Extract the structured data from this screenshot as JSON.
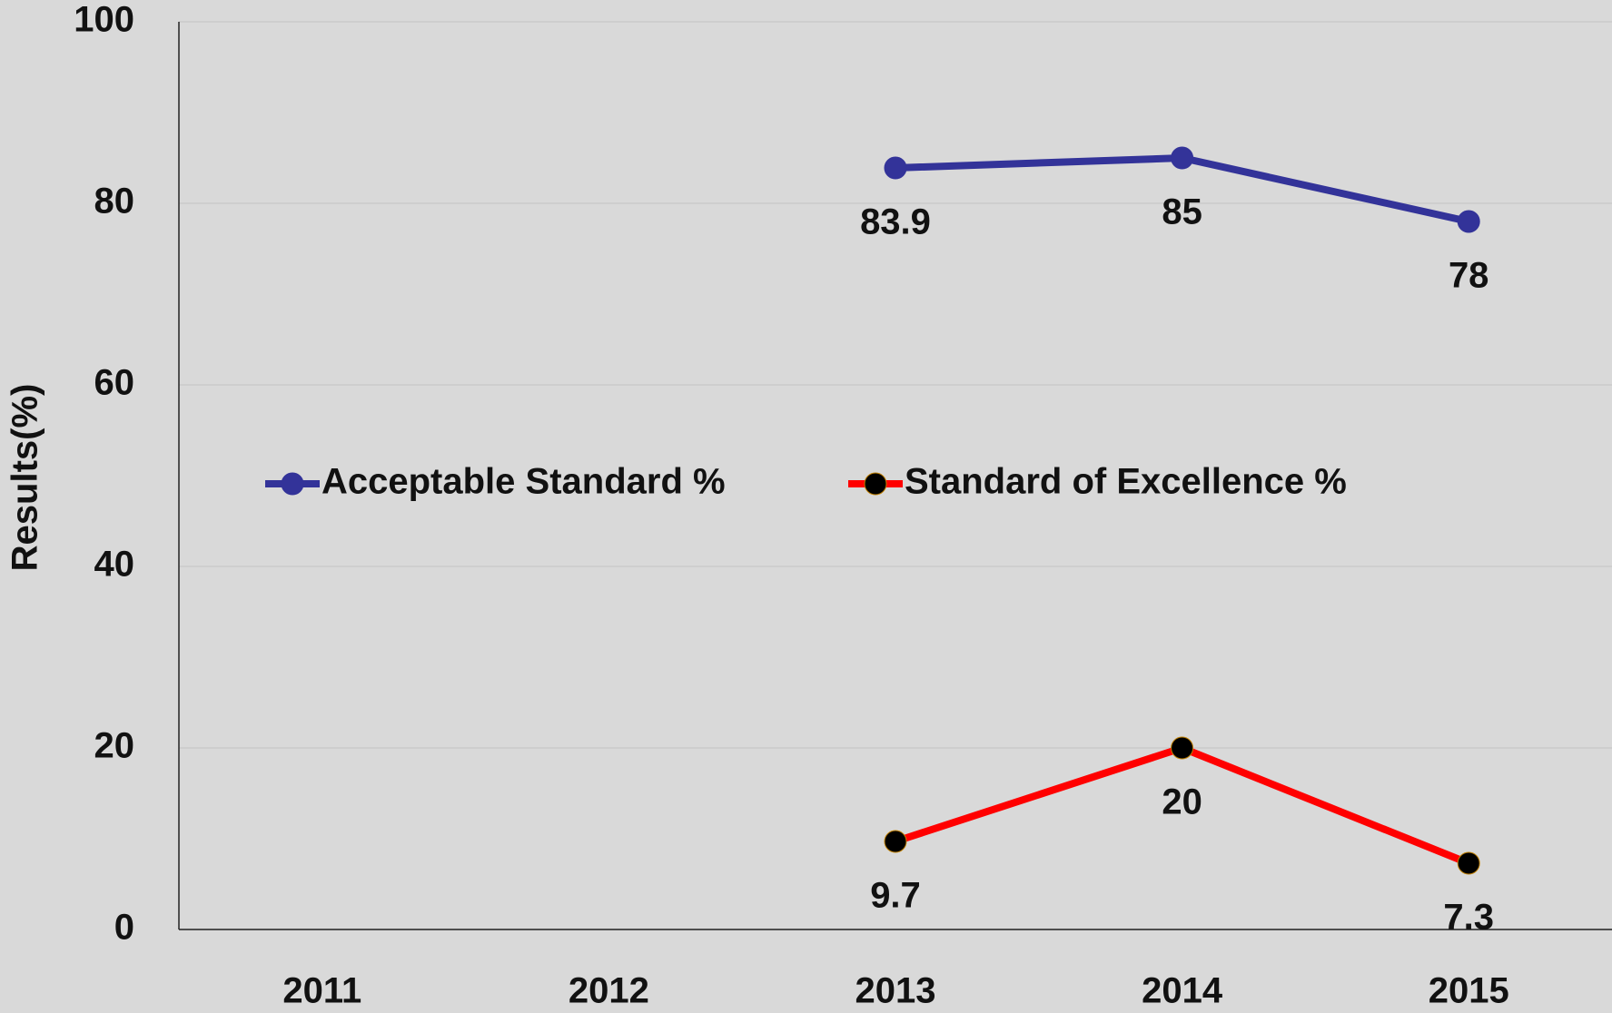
{
  "chart_data": {
    "type": "line",
    "y_label": "Results(%)",
    "categories": [
      "2011",
      "2012",
      "2013",
      "2014",
      "2015"
    ],
    "series": [
      {
        "name": "Acceptable Standard %",
        "color": "#333399",
        "marker_color": "#333399",
        "values": [
          null,
          null,
          83.9,
          85,
          78
        ]
      },
      {
        "name": "Standard of Excellence %",
        "color": "#ff0000",
        "marker_color": "#000000",
        "values": [
          null,
          null,
          9.7,
          20,
          7.3
        ]
      }
    ],
    "ylim": [
      0,
      100
    ],
    "yticks": [
      0,
      20,
      40,
      60,
      80,
      100
    ],
    "grid": true,
    "legend": "center-left"
  }
}
